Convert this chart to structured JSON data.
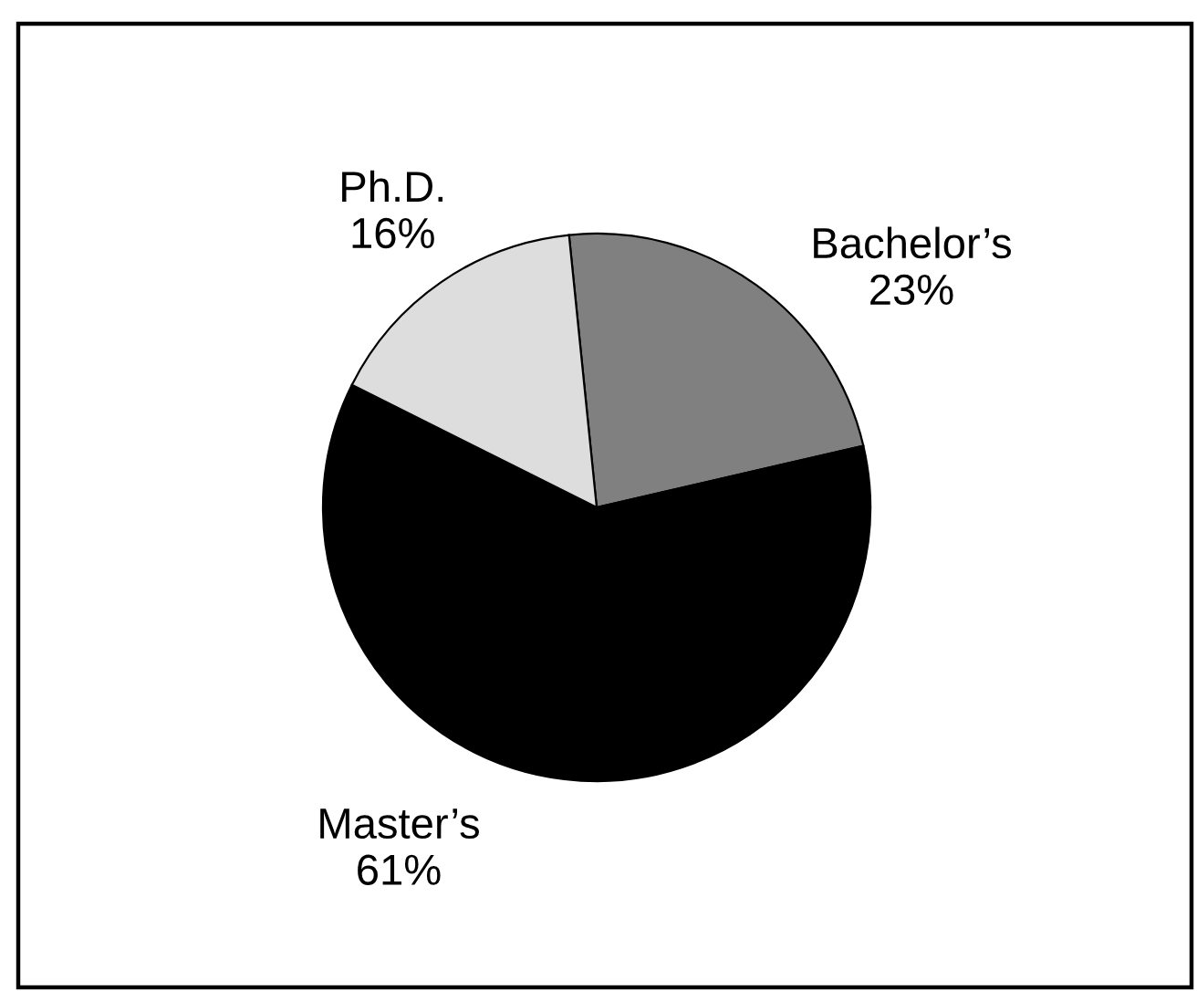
{
  "chart_data": {
    "type": "pie",
    "categories": [
      "Bachelor’s",
      "Master’s",
      "Ph.D."
    ],
    "values": [
      23,
      61,
      16
    ],
    "colors": [
      "#808080",
      "#000000",
      "#dddddd"
    ],
    "value_labels": [
      "23%",
      "61%",
      "16%"
    ]
  }
}
